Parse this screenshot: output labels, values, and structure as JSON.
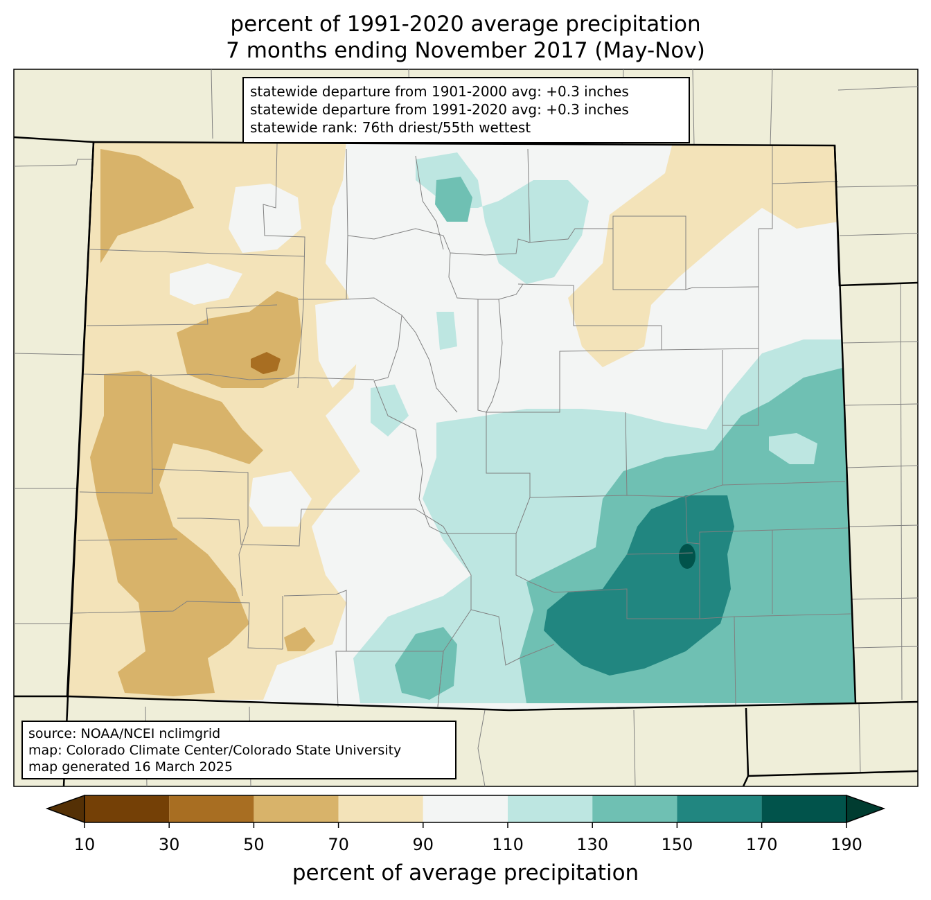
{
  "title": {
    "line1": "percent of 1991-2020 average precipitation",
    "line2": "7 months ending November 2017 (May-Nov)"
  },
  "stats": {
    "line1": "statewide departure from 1901-2000 avg: +0.3 inches",
    "line2": "statewide departure from 1991-2020 avg: +0.3 inches",
    "line3": "statewide rank: 76th driest/55th wettest"
  },
  "source": {
    "line1": "source: NOAA/NCEI nclimgrid",
    "line2": "map: Colorado Climate Center/Colorado State University",
    "line3": "map generated 16 March 2025"
  },
  "colorbar": {
    "label": "percent of average precipitation",
    "ticks": [
      "10",
      "30",
      "50",
      "70",
      "90",
      "110",
      "130",
      "150",
      "170",
      "190"
    ],
    "colors": [
      "#744006",
      "#a86e22",
      "#d8b36a",
      "#f3e3b9",
      "#f3f5f4",
      "#bde6e1",
      "#6fc0b3",
      "#218680",
      "#01534b"
    ],
    "under_color": "#543005",
    "over_color": "#003c30"
  },
  "colors": {
    "land_outside": "#efeed9",
    "county_lines": "#808080",
    "state_lines": "#000000"
  }
}
